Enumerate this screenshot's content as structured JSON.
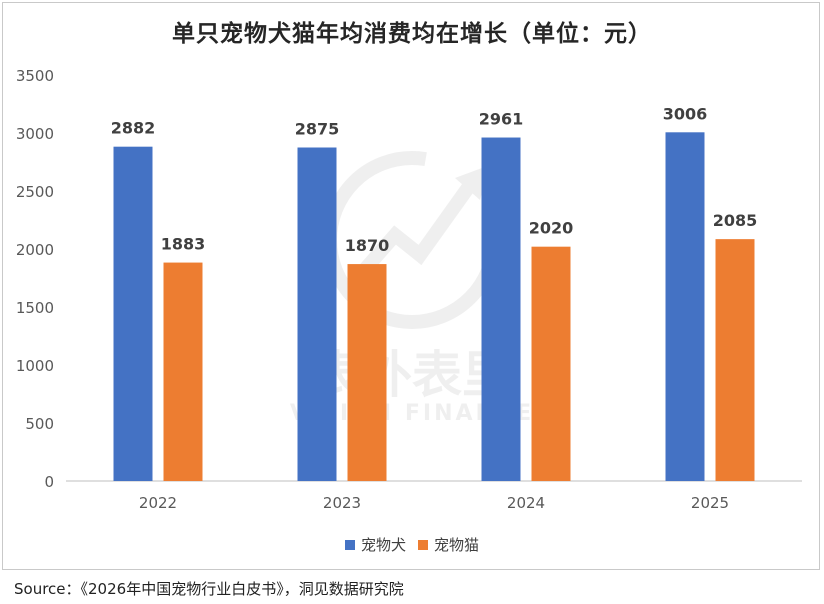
{
  "chart_data": {
    "type": "bar",
    "title": "单只宠物犬猫年均消费均在增长（单位：元）",
    "categories": [
      "2022",
      "2023",
      "2024",
      "2025"
    ],
    "series": [
      {
        "name": "宠物犬",
        "values": [
          2882,
          2875,
          2961,
          3006
        ],
        "color": "#4472C4"
      },
      {
        "name": "宠物猫",
        "values": [
          1883,
          1870,
          2020,
          2085
        ],
        "color": "#ED7D31"
      }
    ],
    "ylim": [
      0,
      3500
    ],
    "yticks": [
      0,
      500,
      1000,
      1500,
      2000,
      2500,
      3000,
      3500
    ],
    "grid": false,
    "legend": "bottom"
  },
  "watermark": {
    "cn": "表外表里",
    "en": "VISION FINANCE"
  },
  "source": "Source：《2026年中国宠物行业白皮书》，洞见数据研究院"
}
